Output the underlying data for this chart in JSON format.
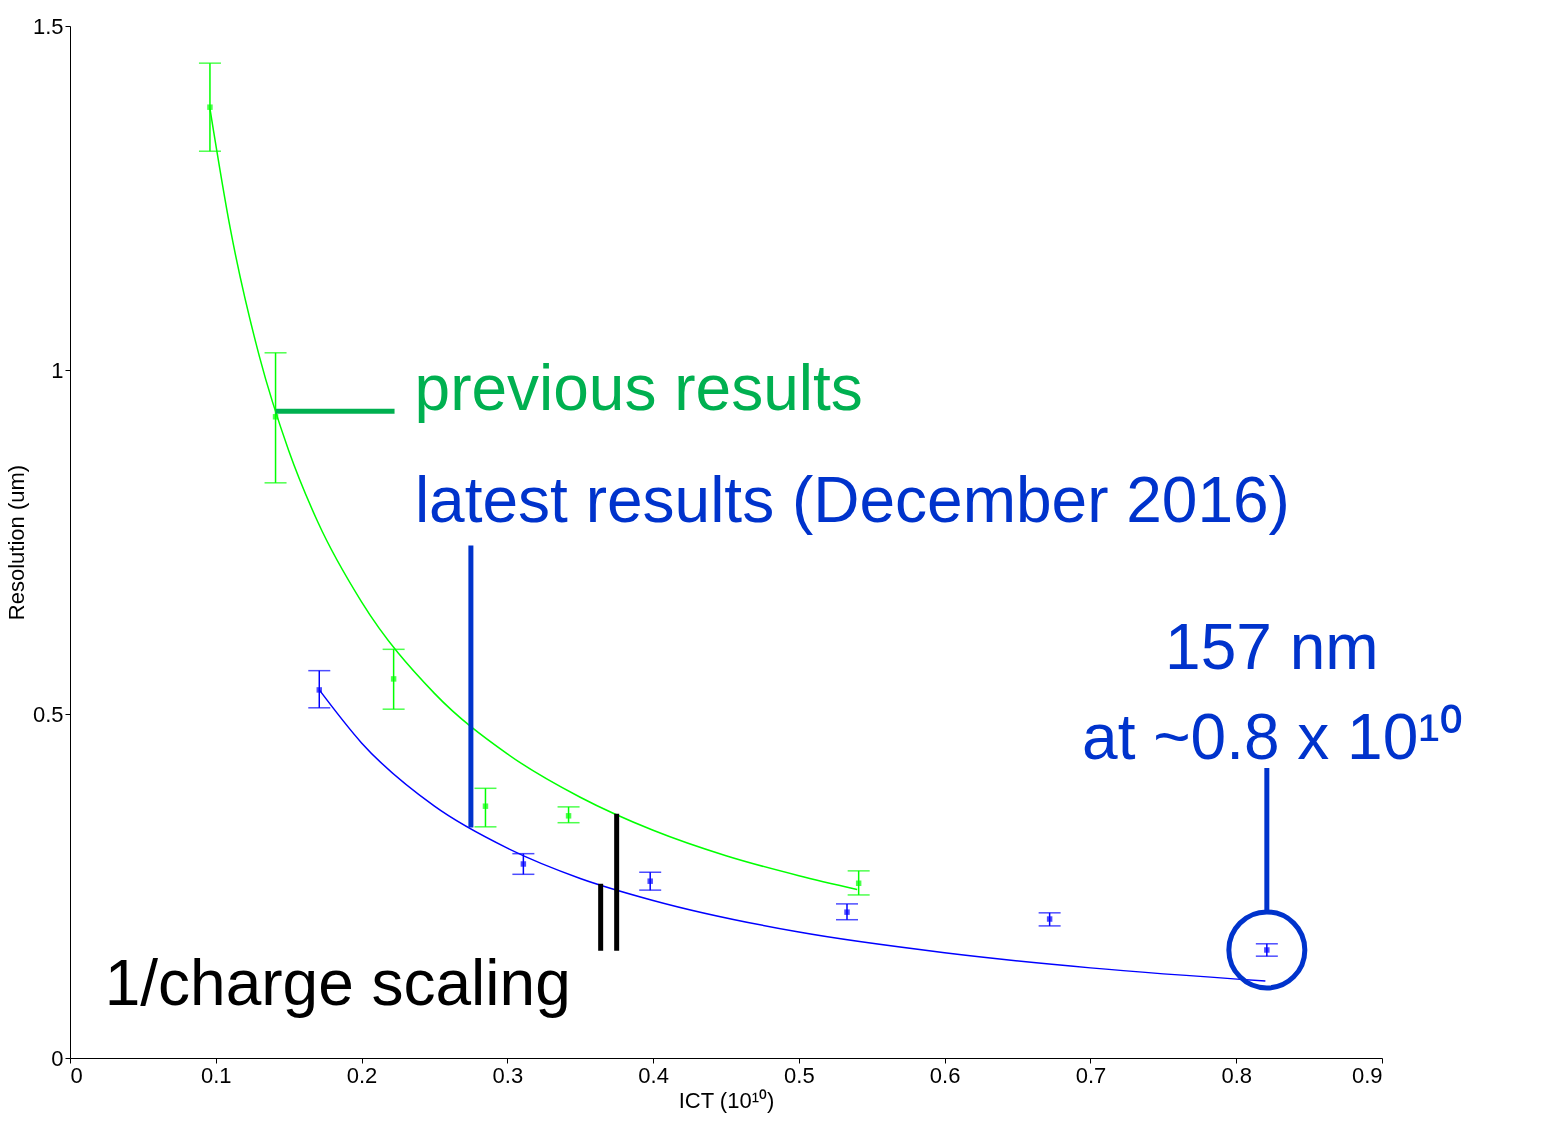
{
  "chart_data": {
    "type": "scatter",
    "xlabel": "ICT (10¹⁰)",
    "ylabel": "Resolution (um)",
    "xlim": [
      0,
      0.9
    ],
    "xticks": [
      0,
      0.1,
      0.2,
      0.3,
      0.4,
      0.5,
      0.6,
      0.7,
      0.8,
      0.9
    ],
    "ylim": [
      0,
      1.5
    ],
    "yticks": [
      0,
      0.5,
      1,
      1.5
    ],
    "grid": false,
    "marker": "square",
    "series": [
      {
        "color": "#00ff00",
        "x": [
          0.096,
          0.141,
          0.222,
          0.285,
          0.342,
          0.541
        ],
        "values": [
          1.382,
          0.932,
          0.551,
          0.366,
          0.352,
          0.254
        ],
        "errors": [
          [
            1.318,
            1.446
          ],
          [
            0.836,
            1.025
          ],
          [
            0.507,
            0.594
          ],
          [
            0.336,
            0.392
          ],
          [
            0.342,
            0.365
          ],
          [
            0.237,
            0.272
          ]
        ]
      },
      {
        "color": "#0000ff",
        "x": [
          0.171,
          0.311,
          0.398,
          0.533,
          0.672,
          0.821
        ],
        "values": [
          0.535,
          0.282,
          0.257,
          0.212,
          0.202,
          0.157
        ],
        "errors": [
          [
            0.509,
            0.563
          ],
          [
            0.267,
            0.297
          ],
          [
            0.244,
            0.27
          ],
          [
            0.201,
            0.224
          ],
          [
            0.192,
            0.211
          ],
          [
            0.148,
            0.166
          ]
        ]
      },
      {
        "type": "line",
        "color": "#00ff00",
        "line_style": "solid",
        "marker": "none",
        "x": [
          0.096,
          0.11,
          0.13,
          0.15,
          0.17,
          0.2,
          0.25,
          0.3,
          0.35,
          0.4,
          0.45,
          0.5,
          0.54
        ],
        "values": [
          1.38,
          1.205,
          1.019,
          0.883,
          0.779,
          0.663,
          0.53,
          0.442,
          0.379,
          0.331,
          0.294,
          0.265,
          0.245
        ]
      },
      {
        "type": "line",
        "color": "#0000ff",
        "line_style": "solid",
        "marker": "none",
        "x": [
          0.171,
          0.2,
          0.25,
          0.3,
          0.35,
          0.4,
          0.5,
          0.6,
          0.7,
          0.82
        ],
        "values": [
          0.535,
          0.458,
          0.366,
          0.305,
          0.261,
          0.229,
          0.183,
          0.153,
          0.131,
          0.112
        ]
      }
    ],
    "annotations": [
      {
        "text": "previous results",
        "x": 0.141,
        "y": 0.94
      },
      {
        "text": "latest results (December 2016)",
        "x": 0.275,
        "y": 0.335
      },
      {
        "text": "157 nm\nat ~0.8 x 10¹⁰",
        "x": 0.821,
        "y": 0.157
      },
      {
        "text": "1/charge scaling",
        "x": 0.375,
        "y": 0.355
      }
    ]
  }
}
